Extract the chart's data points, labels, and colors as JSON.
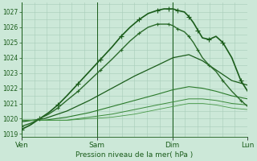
{
  "xlabel": "Pression niveau de la mer( hPa )",
  "bg_color": "#cce8d8",
  "grid_color": "#a8ccb8",
  "dark_green": "#1a5c1a",
  "mid_green": "#2d7a2d",
  "light_green": "#4a9a4a",
  "ylim": [
    1018.8,
    1027.6
  ],
  "xlim": [
    0,
    1.0
  ],
  "yticks": [
    1019,
    1020,
    1021,
    1022,
    1023,
    1024,
    1025,
    1026,
    1027
  ],
  "day_labels": [
    "Ven",
    "Sam",
    "Dim",
    "Lun"
  ],
  "day_positions": [
    0.0,
    0.333,
    0.667,
    1.0
  ],
  "series": [
    {
      "x": [
        0.0,
        0.04,
        0.08,
        0.12,
        0.16,
        0.2,
        0.25,
        0.3,
        0.35,
        0.4,
        0.44,
        0.48,
        0.52,
        0.56,
        0.6,
        0.63,
        0.65,
        0.67,
        0.69,
        0.72,
        0.74,
        0.76,
        0.78,
        0.8,
        0.83,
        0.86,
        0.89,
        0.93,
        0.97,
        1.0
      ],
      "y": [
        1019.3,
        1019.6,
        1020.0,
        1020.4,
        1020.9,
        1021.5,
        1022.3,
        1023.1,
        1023.9,
        1024.7,
        1025.4,
        1026.0,
        1026.5,
        1026.9,
        1027.1,
        1027.2,
        1027.2,
        1027.2,
        1027.1,
        1027.0,
        1026.7,
        1026.3,
        1025.8,
        1025.3,
        1025.2,
        1025.4,
        1025.0,
        1024.0,
        1022.5,
        1021.8
      ],
      "color": "#1a5c1a",
      "lw": 1.2,
      "marker": "+",
      "ms": 4,
      "markevery": 2
    },
    {
      "x": [
        0.0,
        0.04,
        0.08,
        0.12,
        0.16,
        0.2,
        0.25,
        0.3,
        0.35,
        0.4,
        0.44,
        0.48,
        0.52,
        0.56,
        0.6,
        0.63,
        0.65,
        0.67,
        0.69,
        0.72,
        0.74,
        0.76,
        0.78,
        0.8,
        0.83,
        0.86,
        0.89,
        0.93,
        0.97,
        1.0
      ],
      "y": [
        1019.5,
        1019.7,
        1020.0,
        1020.3,
        1020.7,
        1021.2,
        1021.8,
        1022.5,
        1023.2,
        1023.9,
        1024.5,
        1025.1,
        1025.6,
        1026.0,
        1026.2,
        1026.2,
        1026.2,
        1026.1,
        1025.9,
        1025.7,
        1025.4,
        1025.0,
        1024.5,
        1024.0,
        1023.5,
        1023.1,
        1022.5,
        1021.8,
        1021.2,
        1020.8
      ],
      "color": "#2a6a2a",
      "lw": 1.0,
      "marker": "+",
      "ms": 3.5,
      "markevery": 2
    },
    {
      "x": [
        0.0,
        0.1,
        0.2,
        0.3,
        0.4,
        0.5,
        0.6,
        0.67,
        0.74,
        0.8,
        0.86,
        0.93,
        1.0
      ],
      "y": [
        1019.8,
        1020.0,
        1020.5,
        1021.2,
        1022.0,
        1022.8,
        1023.5,
        1024.0,
        1024.2,
        1023.8,
        1023.2,
        1022.5,
        1022.2
      ],
      "color": "#1a5c1a",
      "lw": 0.9,
      "marker": null,
      "ms": 0,
      "markevery": 1
    },
    {
      "x": [
        0.0,
        0.1,
        0.2,
        0.3,
        0.4,
        0.5,
        0.6,
        0.67,
        0.74,
        0.8,
        0.86,
        0.93,
        1.0
      ],
      "y": [
        1019.9,
        1019.9,
        1020.1,
        1020.4,
        1020.8,
        1021.2,
        1021.6,
        1021.9,
        1022.1,
        1022.0,
        1021.8,
        1021.5,
        1021.3
      ],
      "color": "#2a7a2a",
      "lw": 0.8,
      "marker": null,
      "ms": 0,
      "markevery": 1
    },
    {
      "x": [
        0.0,
        0.1,
        0.2,
        0.3,
        0.4,
        0.5,
        0.6,
        0.67,
        0.74,
        0.8,
        0.86,
        0.93,
        1.0
      ],
      "y": [
        1019.9,
        1019.9,
        1019.9,
        1020.1,
        1020.3,
        1020.6,
        1020.9,
        1021.1,
        1021.3,
        1021.3,
        1021.2,
        1021.0,
        1020.9
      ],
      "color": "#3a8a3a",
      "lw": 0.7,
      "marker": null,
      "ms": 0,
      "markevery": 1
    },
    {
      "x": [
        0.0,
        0.1,
        0.2,
        0.3,
        0.4,
        0.5,
        0.6,
        0.67,
        0.74,
        0.8,
        0.86,
        0.93,
        1.0
      ],
      "y": [
        1019.9,
        1019.9,
        1019.9,
        1020.0,
        1020.1,
        1020.3,
        1020.6,
        1020.8,
        1021.0,
        1021.0,
        1020.9,
        1020.7,
        1020.6
      ],
      "color": "#4a9a4a",
      "lw": 0.6,
      "marker": null,
      "ms": 0,
      "markevery": 1
    }
  ]
}
